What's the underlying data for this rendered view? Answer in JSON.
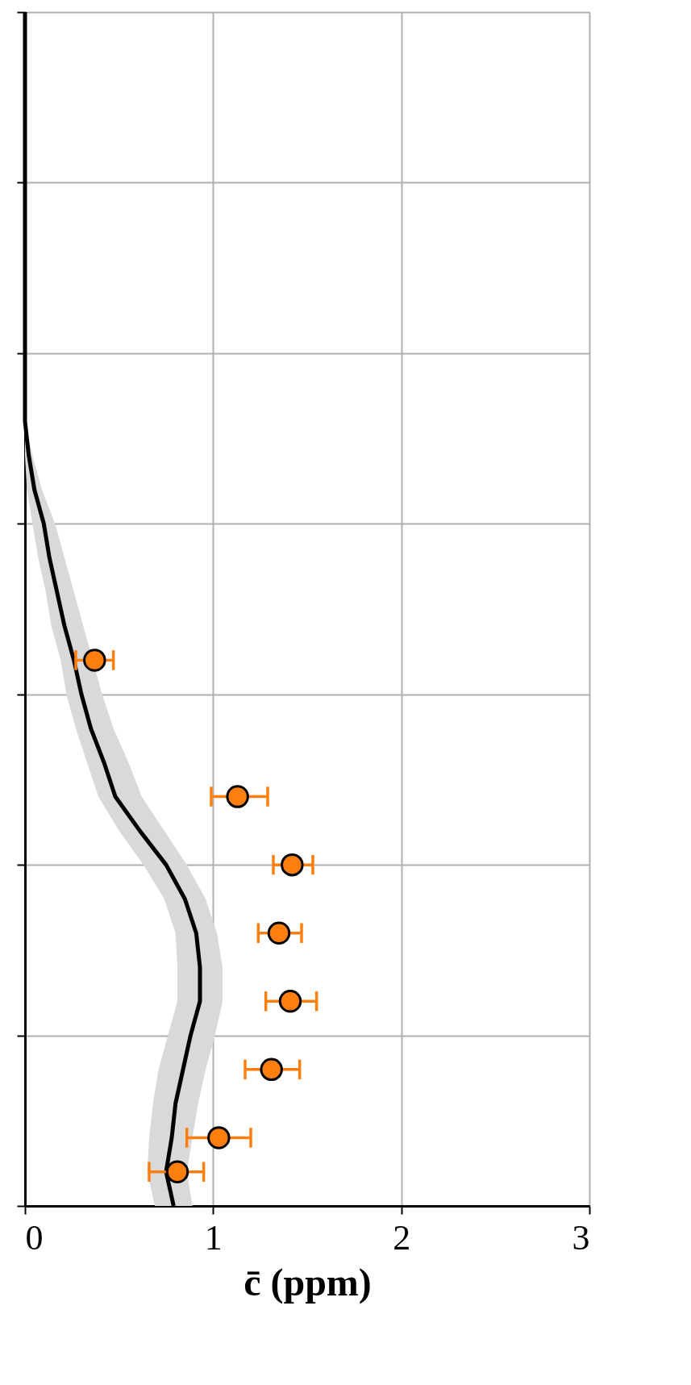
{
  "chart_data": {
    "type": "line",
    "orientation": "horizontal",
    "xlabel": "c̄ (ppm)",
    "xlim": [
      0,
      3
    ],
    "xticks": [
      0,
      1,
      2,
      3
    ],
    "grid": true,
    "tick_labels": "x",
    "categories": [
      null,
      null,
      null,
      null,
      null,
      null,
      null,
      null,
      null,
      null,
      null,
      null,
      null,
      null,
      null,
      null,
      null,
      null,
      null,
      null,
      null,
      null,
      null,
      null,
      null,
      null,
      null,
      null,
      null,
      null,
      null,
      null,
      null,
      null,
      null,
      null
    ],
    "series": [
      {
        "color": "#000000",
        "values": [
          0,
          0,
          0,
          0,
          0,
          0,
          0,
          0,
          0,
          0,
          0,
          0,
          0,
          0.02,
          0.05,
          0.1,
          0.13,
          0.17,
          0.21,
          0.26,
          0.3,
          0.35,
          0.42,
          0.48,
          0.61,
          0.75,
          0.85,
          0.91,
          0.93,
          0.93,
          0.88,
          0.84,
          0.8,
          0.78,
          0.75,
          0.79
        ],
        "lower": [
          0,
          0,
          0,
          0,
          0,
          0,
          0,
          0,
          0,
          0,
          0,
          0,
          0,
          0,
          0.01,
          0.04,
          0.07,
          0.11,
          0.14,
          0.19,
          0.22,
          0.27,
          0.33,
          0.39,
          0.5,
          0.63,
          0.74,
          0.8,
          0.81,
          0.81,
          0.76,
          0.71,
          0.68,
          0.66,
          0.65,
          0.69
        ],
        "upper": [
          0,
          0,
          0,
          0,
          0,
          0,
          0,
          0,
          0,
          0,
          0,
          0,
          0,
          0.04,
          0.09,
          0.16,
          0.21,
          0.26,
          0.31,
          0.36,
          0.41,
          0.47,
          0.55,
          0.62,
          0.74,
          0.86,
          0.96,
          1.02,
          1.05,
          1.05,
          1.01,
          0.96,
          0.92,
          0.89,
          0.86,
          0.89
        ]
      },
      {
        "type": "scatter",
        "color": "#ff7f0e",
        "marker": "circle",
        "values": [
          null,
          null,
          null,
          null,
          null,
          null,
          null,
          null,
          null,
          null,
          null,
          null,
          null,
          null,
          null,
          null,
          null,
          null,
          null,
          0.37,
          null,
          null,
          null,
          1.13,
          null,
          1.42,
          null,
          1.35,
          null,
          1.41,
          null,
          1.31,
          null,
          1.03,
          0.81,
          null
        ],
        "errors": [
          null,
          null,
          null,
          null,
          null,
          null,
          null,
          null,
          null,
          null,
          null,
          null,
          null,
          null,
          null,
          null,
          null,
          null,
          null,
          [
            0.27,
            0.47
          ],
          null,
          null,
          null,
          [
            0.99,
            1.29
          ],
          null,
          [
            1.32,
            1.53
          ],
          null,
          [
            1.24,
            1.47
          ],
          null,
          [
            1.28,
            1.55
          ],
          null,
          [
            1.17,
            1.46
          ],
          null,
          [
            0.86,
            1.2
          ],
          [
            0.66,
            0.95
          ],
          null
        ]
      }
    ]
  }
}
